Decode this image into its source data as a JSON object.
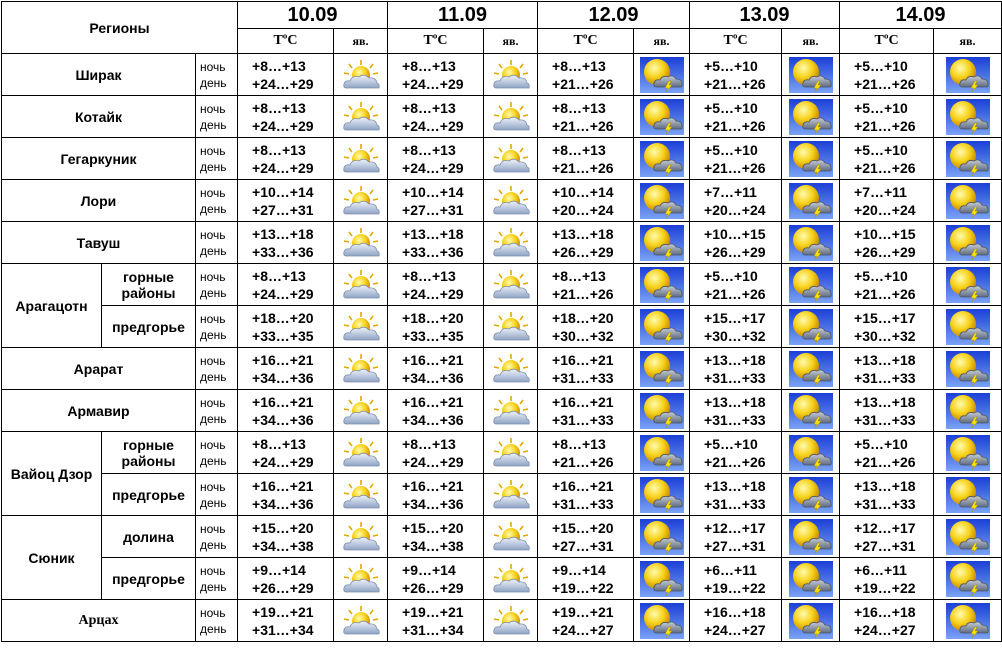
{
  "header": {
    "regions_label": "Регионы",
    "temp_label": "ТºС",
    "phen_label": "яв.",
    "dates": [
      "10.09",
      "11.09",
      "12.09",
      "13.09",
      "14.09"
    ]
  },
  "labels": {
    "night": "ночь",
    "day": "день"
  },
  "icons": {
    "partly-cloudy-icon": "sun partially behind cloud",
    "thunderstorm-icon": "sun with storm cloud and lightning"
  },
  "rows": [
    {
      "region": "Ширак",
      "sub": "",
      "days": [
        {
          "night": "+8…+13",
          "day": "+24…+29",
          "icon": "partly-cloudy-icon"
        },
        {
          "night": "+8…+13",
          "day": "+24…+29",
          "icon": "partly-cloudy-icon"
        },
        {
          "night": "+8…+13",
          "day": "+21…+26",
          "icon": "thunderstorm-icon"
        },
        {
          "night": "+5…+10",
          "day": "+21…+26",
          "icon": "thunderstorm-icon"
        },
        {
          "night": "+5…+10",
          "day": "+21…+26",
          "icon": "thunderstorm-icon"
        }
      ]
    },
    {
      "region": "Котайк",
      "sub": "",
      "days": [
        {
          "night": "+8…+13",
          "day": "+24…+29",
          "icon": "partly-cloudy-icon"
        },
        {
          "night": "+8…+13",
          "day": "+24…+29",
          "icon": "partly-cloudy-icon"
        },
        {
          "night": "+8…+13",
          "day": "+21…+26",
          "icon": "thunderstorm-icon"
        },
        {
          "night": "+5…+10",
          "day": "+21…+26",
          "icon": "thunderstorm-icon"
        },
        {
          "night": "+5…+10",
          "day": "+21…+26",
          "icon": "thunderstorm-icon"
        }
      ]
    },
    {
      "region": "Гегаркуник",
      "sub": "",
      "days": [
        {
          "night": "+8…+13",
          "day": "+24…+29",
          "icon": "partly-cloudy-icon"
        },
        {
          "night": "+8…+13",
          "day": "+24…+29",
          "icon": "partly-cloudy-icon"
        },
        {
          "night": "+8…+13",
          "day": "+21…+26",
          "icon": "thunderstorm-icon"
        },
        {
          "night": "+5…+10",
          "day": "+21…+26",
          "icon": "thunderstorm-icon"
        },
        {
          "night": "+5…+10",
          "day": "+21…+26",
          "icon": "thunderstorm-icon"
        }
      ]
    },
    {
      "region": "Лори",
      "sub": "",
      "days": [
        {
          "night": "+10…+14",
          "day": "+27…+31",
          "icon": "partly-cloudy-icon"
        },
        {
          "night": "+10…+14",
          "day": "+27…+31",
          "icon": "partly-cloudy-icon"
        },
        {
          "night": "+10…+14",
          "day": "+20…+24",
          "icon": "thunderstorm-icon"
        },
        {
          "night": "+7…+11",
          "day": "+20…+24",
          "icon": "thunderstorm-icon"
        },
        {
          "night": "+7…+11",
          "day": "+20…+24",
          "icon": "thunderstorm-icon"
        }
      ]
    },
    {
      "region": "Тавуш",
      "sub": "",
      "days": [
        {
          "night": "+13…+18",
          "day": "+33…+36",
          "icon": "partly-cloudy-icon"
        },
        {
          "night": "+13…+18",
          "day": "+33…+36",
          "icon": "partly-cloudy-icon"
        },
        {
          "night": "+13…+18",
          "day": "+26…+29",
          "icon": "thunderstorm-icon"
        },
        {
          "night": "+10…+15",
          "day": "+26…+29",
          "icon": "thunderstorm-icon"
        },
        {
          "night": "+10…+15",
          "day": "+26…+29",
          "icon": "thunderstorm-icon"
        }
      ]
    },
    {
      "region": "Арагацотн",
      "sub": "горные районы",
      "days": [
        {
          "night": "+8…+13",
          "day": "+24…+29",
          "icon": "partly-cloudy-icon"
        },
        {
          "night": "+8…+13",
          "day": "+24…+29",
          "icon": "partly-cloudy-icon"
        },
        {
          "night": "+8…+13",
          "day": "+21…+26",
          "icon": "thunderstorm-icon"
        },
        {
          "night": "+5…+10",
          "day": "+21…+26",
          "icon": "thunderstorm-icon"
        },
        {
          "night": "+5…+10",
          "day": "+21…+26",
          "icon": "thunderstorm-icon"
        }
      ]
    },
    {
      "region": "",
      "sub": "предгорье",
      "days": [
        {
          "night": "+18…+20",
          "day": "+33…+35",
          "icon": "partly-cloudy-icon"
        },
        {
          "night": "+18…+20",
          "day": "+33…+35",
          "icon": "partly-cloudy-icon"
        },
        {
          "night": "+18…+20",
          "day": "+30…+32",
          "icon": "thunderstorm-icon"
        },
        {
          "night": "+15…+17",
          "day": "+30…+32",
          "icon": "thunderstorm-icon"
        },
        {
          "night": "+15…+17",
          "day": "+30…+32",
          "icon": "thunderstorm-icon"
        }
      ]
    },
    {
      "region": "Арарат",
      "sub": "",
      "days": [
        {
          "night": "+16…+21",
          "day": "+34…+36",
          "icon": "partly-cloudy-icon"
        },
        {
          "night": "+16…+21",
          "day": "+34…+36",
          "icon": "partly-cloudy-icon"
        },
        {
          "night": "+16…+21",
          "day": "+31…+33",
          "icon": "thunderstorm-icon"
        },
        {
          "night": "+13…+18",
          "day": "+31…+33",
          "icon": "thunderstorm-icon"
        },
        {
          "night": "+13…+18",
          "day": "+31…+33",
          "icon": "thunderstorm-icon"
        }
      ]
    },
    {
      "region": "Армавир",
      "sub": "",
      "days": [
        {
          "night": "+16…+21",
          "day": "+34…+36",
          "icon": "partly-cloudy-icon"
        },
        {
          "night": "+16…+21",
          "day": "+34…+36",
          "icon": "partly-cloudy-icon"
        },
        {
          "night": "+16…+21",
          "day": "+31…+33",
          "icon": "thunderstorm-icon"
        },
        {
          "night": "+13…+18",
          "day": "+31…+33",
          "icon": "thunderstorm-icon"
        },
        {
          "night": "+13…+18",
          "day": "+31…+33",
          "icon": "thunderstorm-icon"
        }
      ]
    },
    {
      "region": "Вайоц Дзор",
      "sub": "горные районы",
      "days": [
        {
          "night": "+8…+13",
          "day": "+24…+29",
          "icon": "partly-cloudy-icon"
        },
        {
          "night": "+8…+13",
          "day": "+24…+29",
          "icon": "partly-cloudy-icon"
        },
        {
          "night": "+8…+13",
          "day": "+21…+26",
          "icon": "thunderstorm-icon"
        },
        {
          "night": "+5…+10",
          "day": "+21…+26",
          "icon": "thunderstorm-icon"
        },
        {
          "night": "+5…+10",
          "day": "+21…+26",
          "icon": "thunderstorm-icon"
        }
      ]
    },
    {
      "region": "",
      "sub": "предгорье",
      "days": [
        {
          "night": "+16…+21",
          "day": "+34…+36",
          "icon": "partly-cloudy-icon"
        },
        {
          "night": "+16…+21",
          "day": "+34…+36",
          "icon": "partly-cloudy-icon"
        },
        {
          "night": "+16…+21",
          "day": "+31…+33",
          "icon": "thunderstorm-icon"
        },
        {
          "night": "+13…+18",
          "day": "+31…+33",
          "icon": "thunderstorm-icon"
        },
        {
          "night": "+13…+18",
          "day": "+31…+33",
          "icon": "thunderstorm-icon"
        }
      ]
    },
    {
      "region": "Сюник",
      "sub": "долина",
      "days": [
        {
          "night": "+15…+20",
          "day": "+34…+38",
          "icon": "partly-cloudy-icon"
        },
        {
          "night": "+15…+20",
          "day": "+34…+38",
          "icon": "partly-cloudy-icon"
        },
        {
          "night": "+15…+20",
          "day": "+27…+31",
          "icon": "thunderstorm-icon"
        },
        {
          "night": "+12…+17",
          "day": "+27…+31",
          "icon": "thunderstorm-icon"
        },
        {
          "night": "+12…+17",
          "day": "+27…+31",
          "icon": "thunderstorm-icon"
        }
      ]
    },
    {
      "region": "",
      "sub": "предгорье",
      "days": [
        {
          "night": "+9…+14",
          "day": "+26…+29",
          "icon": "partly-cloudy-icon"
        },
        {
          "night": "+9…+14",
          "day": "+26…+29",
          "icon": "partly-cloudy-icon"
        },
        {
          "night": "+9…+14",
          "day": "+19…+22",
          "icon": "thunderstorm-icon"
        },
        {
          "night": "+6…+11",
          "day": "+19…+22",
          "icon": "thunderstorm-icon"
        },
        {
          "night": "+6…+11",
          "day": "+19…+22",
          "icon": "thunderstorm-icon"
        }
      ]
    },
    {
      "region": "Арцах",
      "sub": "",
      "days": [
        {
          "night": "+19…+21",
          "day": "+31…+34",
          "icon": "partly-cloudy-icon"
        },
        {
          "night": "+19…+21",
          "day": "+31…+34",
          "icon": "partly-cloudy-icon"
        },
        {
          "night": "+19…+21",
          "day": "+24…+27",
          "icon": "thunderstorm-icon"
        },
        {
          "night": "+16…+18",
          "day": "+24…+27",
          "icon": "thunderstorm-icon"
        },
        {
          "night": "+16…+18",
          "day": "+24…+27",
          "icon": "thunderstorm-icon"
        }
      ]
    }
  ]
}
